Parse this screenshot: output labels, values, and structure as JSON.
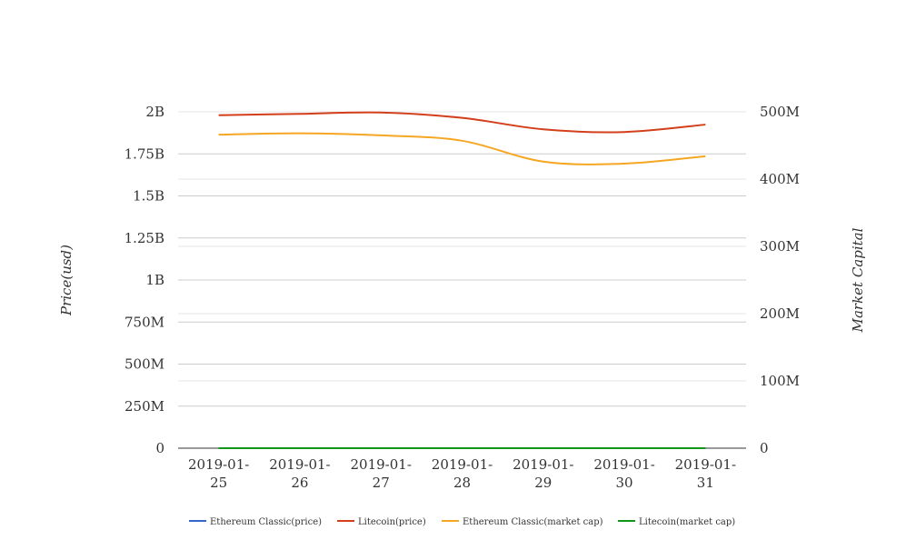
{
  "chart_data": {
    "type": "line",
    "x": [
      "2019-01-25",
      "2019-01-26",
      "2019-01-27",
      "2019-01-28",
      "2019-01-29",
      "2019-01-30",
      "2019-01-31"
    ],
    "x_tick_labels": [
      [
        "2019-01-",
        "25"
      ],
      [
        "2019-01-",
        "26"
      ],
      [
        "2019-01-",
        "27"
      ],
      [
        "2019-01-",
        "28"
      ],
      [
        "2019-01-",
        "29"
      ],
      [
        "2019-01-",
        "30"
      ],
      [
        "2019-01-",
        "31"
      ]
    ],
    "ylabel": "Price(usd)",
    "y2label": "Market Capital",
    "ylim": [
      0,
      2000000000
    ],
    "y2lim": [
      0,
      500000000
    ],
    "y_ticks": [
      {
        "value": 0,
        "label": "0"
      },
      {
        "value": 250000000,
        "label": "250M"
      },
      {
        "value": 500000000,
        "label": "500M"
      },
      {
        "value": 750000000,
        "label": "750M"
      },
      {
        "value": 1000000000,
        "label": "1B"
      },
      {
        "value": 1250000000,
        "label": "1.25B"
      },
      {
        "value": 1500000000,
        "label": "1.5B"
      },
      {
        "value": 1750000000,
        "label": "1.75B"
      },
      {
        "value": 2000000000,
        "label": "2B"
      }
    ],
    "y2_ticks": [
      {
        "value": 0,
        "label": "0"
      },
      {
        "value": 100000000,
        "label": "100M"
      },
      {
        "value": 200000000,
        "label": "200M"
      },
      {
        "value": 300000000,
        "label": "300M"
      },
      {
        "value": 400000000,
        "label": "400M"
      },
      {
        "value": 500000000,
        "label": "500M"
      }
    ],
    "grid": true,
    "legend_position": "bottom",
    "series": [
      {
        "name": "Ethereum Classic(price)",
        "axis": "left",
        "color": "#3366cc",
        "values": [
          4.3,
          4.3,
          4.3,
          4.3,
          4.0,
          4.0,
          4.0
        ]
      },
      {
        "name": "Litecoin(price)",
        "axis": "right",
        "color": "#d23f1a",
        "values": [
          495000000,
          497000000,
          499000000,
          491000000,
          474000000,
          470000000,
          481000000
        ]
      },
      {
        "name": "Ethereum Classic(market cap)",
        "axis": "right",
        "color": "#f5a623",
        "values": [
          466000000,
          468000000,
          465000000,
          457000000,
          426000000,
          423000000,
          434000000
        ]
      },
      {
        "name": "Litecoin(market cap)",
        "axis": "left",
        "color": "#109618",
        "values": [
          31.9,
          32.4,
          32.2,
          31.5,
          29.7,
          29.6,
          29.2
        ]
      }
    ]
  }
}
